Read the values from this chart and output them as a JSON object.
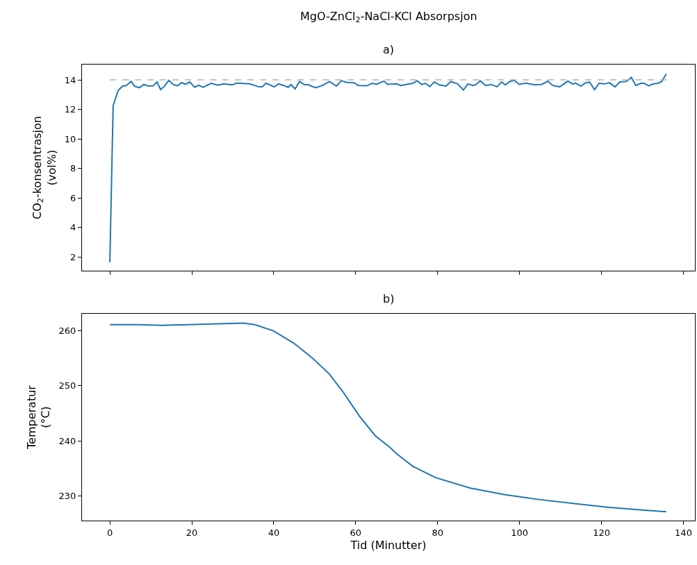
{
  "chart_data": [
    {
      "type": "line",
      "title": "MgO-ZnCl$_{2}$-NaCl-KCl Absorpsjon",
      "subtitle": "a)",
      "ylabel": "CO$_{2}$-konsentrasjon\n(vol%)",
      "x": [
        0,
        0.8,
        2,
        3.1,
        4,
        5.2,
        6,
        7.2,
        8.3,
        9.5,
        10.6,
        11.5,
        12.4,
        13.4,
        14.4,
        15.4,
        16.5,
        17.5,
        18.5,
        19.5,
        20.7,
        21.6,
        22.8,
        24.7,
        26.4,
        27.8,
        29.8,
        31,
        34.1,
        36.4,
        37.2,
        38.1,
        40.1,
        41.2,
        42.4,
        43.5,
        44.2,
        45.2,
        46.3,
        47.4,
        48.5,
        50.2,
        51.9,
        53.6,
        55.3,
        56.5,
        57.9,
        59.6,
        60.7,
        62.7,
        64.1,
        65,
        66.9,
        67.8,
        70,
        71,
        73.9,
        75,
        76.1,
        77,
        78.1,
        79.2,
        80.4,
        82.1,
        83.2,
        84.9,
        86.3,
        87.4,
        88.6,
        89.4,
        90.4,
        91.7,
        93.1,
        94.5,
        95.6,
        96.5,
        97.6,
        98.7,
        99.9,
        101.6,
        103.8,
        105.5,
        106.9,
        108.1,
        109.8,
        111.8,
        112.9,
        113.7,
        115,
        116,
        117.1,
        118.3,
        119.4,
        120.8,
        121.9,
        123.3,
        124.5,
        125.9,
        126.5,
        127.3,
        128.4,
        129.6,
        130.4,
        131.5,
        132.7,
        133.8,
        134.7,
        135.8
      ],
      "series": [
        {
          "color": "#1f77b4",
          "values": [
            1.64,
            12.25,
            13.27,
            13.58,
            13.62,
            13.9,
            13.58,
            13.47,
            13.69,
            13.58,
            13.6,
            13.86,
            13.34,
            13.6,
            13.97,
            13.7,
            13.6,
            13.81,
            13.7,
            13.86,
            13.5,
            13.64,
            13.5,
            13.77,
            13.64,
            13.73,
            13.66,
            13.78,
            13.73,
            13.53,
            13.53,
            13.78,
            13.53,
            13.73,
            13.62,
            13.5,
            13.69,
            13.39,
            13.89,
            13.69,
            13.66,
            13.47,
            13.62,
            13.89,
            13.58,
            13.94,
            13.83,
            13.81,
            13.62,
            13.6,
            13.78,
            13.69,
            13.92,
            13.7,
            13.73,
            13.62,
            13.77,
            13.94,
            13.69,
            13.77,
            13.55,
            13.86,
            13.66,
            13.58,
            13.89,
            13.73,
            13.31,
            13.73,
            13.62,
            13.69,
            13.94,
            13.62,
            13.69,
            13.53,
            13.86,
            13.66,
            13.89,
            13.97,
            13.7,
            13.78,
            13.66,
            13.7,
            13.92,
            13.62,
            13.53,
            13.92,
            13.73,
            13.78,
            13.58,
            13.78,
            13.86,
            13.34,
            13.77,
            13.73,
            13.81,
            13.53,
            13.86,
            13.89,
            13.97,
            14.17,
            13.62,
            13.77,
            13.77,
            13.6,
            13.73,
            13.77,
            13.89,
            14.41
          ]
        }
      ],
      "ref_lines": [
        {
          "axis": "y",
          "value": 14,
          "color": "#b3b3b3",
          "line_style": "dashed"
        }
      ],
      "xlim": [
        -6.8,
        142.8
      ],
      "xticks": [
        0,
        20,
        40,
        60,
        80,
        100,
        120,
        140
      ],
      "ylim": [
        1.07,
        15.04
      ],
      "yticks": [
        2,
        4,
        6,
        8,
        10,
        12,
        14
      ],
      "tick_labels": "y"
    },
    {
      "type": "line",
      "title": "b)",
      "xlabel": "Tid (Minutter)",
      "ylabel": "Temperatur\n(°C)",
      "x": [
        0,
        7.1,
        12.8,
        23.5,
        32.6,
        35.4,
        39.9,
        45,
        49.5,
        53.5,
        56.9,
        60.9,
        64.8,
        68.2,
        69.9,
        73.9,
        79.5,
        88,
        96.5,
        105,
        113.4,
        121.9,
        130.4,
        135.8
      ],
      "series": [
        {
          "color": "#1f77b4",
          "values": [
            261.1,
            261.1,
            261.0,
            261.2,
            261.4,
            261.1,
            260.0,
            257.7,
            255.0,
            252.2,
            248.9,
            244.5,
            240.9,
            238.9,
            237.7,
            235.4,
            233.3,
            231.4,
            230.2,
            229.3,
            228.6,
            227.9,
            227.4,
            227.1
          ]
        }
      ],
      "xlim": [
        -6.8,
        142.8
      ],
      "xticks": [
        0,
        20,
        40,
        60,
        80,
        100,
        120,
        140
      ],
      "ylim": [
        225.5,
        263.1
      ],
      "yticks": [
        230,
        240,
        250,
        260
      ]
    }
  ]
}
